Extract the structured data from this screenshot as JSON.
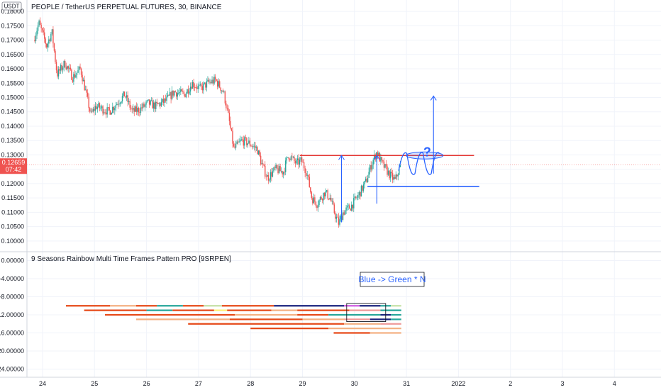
{
  "symbol_title": "PEOPLE / TetherUS PERPETUAL FUTURES, 30, BINANCE",
  "currency_badge": "USDT",
  "indicator_title": "9 Seasons Rainbow Multi Time Frames Pattern PRO [9SRPEN]",
  "current_price": {
    "value": "0.12659",
    "countdown": "07:42",
    "color": "#ef5350"
  },
  "colors": {
    "up": "#26a69a",
    "down": "#ef5350",
    "annotation": "#2962ff",
    "resistance": "#e53935"
  },
  "chart_data": [
    {
      "type": "candlestick",
      "title": "PEOPLE / TetherUS PERPETUAL FUTURES, 30, BINANCE",
      "ylim": [
        0.097,
        0.182
      ],
      "y_ticks": [
        "0.18000",
        "0.17500",
        "0.17000",
        "0.16500",
        "0.16000",
        "0.15500",
        "0.15000",
        "0.14500",
        "0.14000",
        "0.13500",
        "0.13000",
        "0.12500",
        "0.12000",
        "0.11500",
        "0.11000",
        "0.10500",
        "0.10000"
      ],
      "x_ticks": [
        "24",
        "25",
        "26",
        "27",
        "28",
        "29",
        "30",
        "31",
        "2022",
        "2",
        "3",
        "4"
      ],
      "price_path": [
        [
          23.85,
          0.17
        ],
        [
          23.95,
          0.176
        ],
        [
          24.1,
          0.168
        ],
        [
          24.2,
          0.173
        ],
        [
          24.3,
          0.158
        ],
        [
          24.45,
          0.162
        ],
        [
          24.6,
          0.157
        ],
        [
          24.75,
          0.16
        ],
        [
          24.85,
          0.152
        ],
        [
          24.95,
          0.144
        ],
        [
          25.05,
          0.147
        ],
        [
          25.3,
          0.145
        ],
        [
          25.45,
          0.148
        ],
        [
          25.6,
          0.151
        ],
        [
          25.75,
          0.145
        ],
        [
          25.9,
          0.146
        ],
        [
          26.05,
          0.148
        ],
        [
          26.2,
          0.147
        ],
        [
          26.4,
          0.149
        ],
        [
          26.55,
          0.152
        ],
        [
          26.75,
          0.151
        ],
        [
          26.9,
          0.155
        ],
        [
          27.05,
          0.153
        ],
        [
          27.2,
          0.155
        ],
        [
          27.35,
          0.156
        ],
        [
          27.5,
          0.152
        ],
        [
          27.6,
          0.143
        ],
        [
          27.7,
          0.132
        ],
        [
          27.85,
          0.135
        ],
        [
          28.0,
          0.134
        ],
        [
          28.15,
          0.132
        ],
        [
          28.25,
          0.126
        ],
        [
          28.35,
          0.122
        ],
        [
          28.5,
          0.125
        ],
        [
          28.65,
          0.124
        ],
        [
          28.75,
          0.13
        ],
        [
          28.9,
          0.127
        ],
        [
          29.0,
          0.128
        ],
        [
          29.1,
          0.124
        ],
        [
          29.2,
          0.115
        ],
        [
          29.3,
          0.113
        ],
        [
          29.45,
          0.117
        ],
        [
          29.55,
          0.115
        ],
        [
          29.65,
          0.109
        ],
        [
          29.72,
          0.106
        ],
        [
          29.8,
          0.11
        ],
        [
          29.95,
          0.112
        ],
        [
          30.1,
          0.116
        ],
        [
          30.25,
          0.121
        ],
        [
          30.35,
          0.127
        ],
        [
          30.45,
          0.131
        ],
        [
          30.55,
          0.127
        ],
        [
          30.7,
          0.123
        ],
        [
          30.8,
          0.121
        ],
        [
          30.9,
          0.126
        ]
      ],
      "resistance_level": 0.1298,
      "support_level": 0.119,
      "projection_peaks": [
        0.1305,
        0.1305,
        0.1305
      ],
      "target_level": 0.1505,
      "current_level": 0.12659
    },
    {
      "type": "pattern-bars",
      "title": "9 Seasons Rainbow Multi Time Frames Pattern PRO [9SRPEN]",
      "ylim": [
        -25.5,
        1.5
      ],
      "y_ticks": [
        "0.00000",
        "-4.00000",
        "-8.00000",
        "-12.00000",
        "-16.00000",
        "-20.00000",
        "-24.00000"
      ],
      "rows": [
        {
          "y": -10,
          "x_start": 24.45,
          "x_end": 30.9,
          "segments": [
            [
              "#e64a19",
              24.45,
              25.3
            ],
            [
              "#f4b183",
              25.3,
              25.8
            ],
            [
              "#e64a19",
              25.8,
              26.2
            ],
            [
              "#26a69a",
              26.2,
              26.7
            ],
            [
              "#e64a19",
              26.7,
              27.1
            ],
            [
              "#c5e1a5",
              27.1,
              27.45
            ],
            [
              "#e64a19",
              27.45,
              28.45
            ],
            [
              "#1a237e",
              28.45,
              29.8
            ],
            [
              "#d05ce3",
              29.8,
              30.1
            ],
            [
              "#1a237e",
              30.1,
              30.5
            ],
            [
              "#26a69a",
              30.5,
              30.7
            ],
            [
              "#c5e1a5",
              30.7,
              30.9
            ]
          ]
        },
        {
          "y": -11,
          "x_start": 24.8,
          "x_end": 30.9,
          "segments": [
            [
              "#e64a19",
              24.8,
              26.0
            ],
            [
              "#26a69a",
              26.0,
              26.5
            ],
            [
              "#e64a19",
              26.5,
              27.3
            ],
            [
              "#fff176",
              27.3,
              27.55
            ],
            [
              "#e64a19",
              27.55,
              28.4
            ],
            [
              "#f4b183",
              28.4,
              28.9
            ],
            [
              "#e64a19",
              28.9,
              29.9
            ],
            [
              "#ef9a9a",
              29.9,
              30.5
            ],
            [
              "#26a69a",
              30.5,
              30.9
            ]
          ]
        },
        {
          "y": -12,
          "x_start": 25.2,
          "x_end": 30.9,
          "segments": [
            [
              "#e64a19",
              25.2,
              27.7
            ],
            [
              "#f4b183",
              27.7,
              28.9
            ],
            [
              "#e64a19",
              28.9,
              29.5
            ],
            [
              "#26a69a",
              29.5,
              30.5
            ],
            [
              "#1a237e",
              30.5,
              30.7
            ],
            [
              "#26a69a",
              30.7,
              30.9
            ]
          ]
        },
        {
          "y": -13,
          "x_start": 25.8,
          "x_end": 30.9,
          "segments": [
            [
              "#f4b183",
              25.8,
              27.6
            ],
            [
              "#e64a19",
              27.6,
              29.0
            ],
            [
              "#f4b183",
              29.0,
              29.8
            ],
            [
              "#ef9a9a",
              29.8,
              30.3
            ],
            [
              "#1a237e",
              30.3,
              30.7
            ],
            [
              "#26a69a",
              30.7,
              30.9
            ]
          ]
        },
        {
          "y": -14,
          "x_start": 26.8,
          "x_end": 30.9,
          "segments": [
            [
              "#e64a19",
              26.8,
              29.8
            ],
            [
              "#f4b183",
              29.8,
              30.5
            ],
            [
              "#ef9a9a",
              30.5,
              30.9
            ]
          ]
        },
        {
          "y": -15,
          "x_start": 28.0,
          "x_end": 30.9,
          "segments": [
            [
              "#e64a19",
              28.0,
              29.5
            ],
            [
              "#f4b183",
              29.5,
              30.9
            ]
          ]
        },
        {
          "y": -16,
          "x_start": 29.6,
          "x_end": 30.9,
          "segments": [
            [
              "#e64a19",
              29.6,
              30.3
            ],
            [
              "#f4b183",
              30.3,
              30.9
            ]
          ]
        }
      ],
      "highlight_box": {
        "x_start": 29.85,
        "x_end": 30.6,
        "y_top": -9.5,
        "y_bottom": -13.5
      }
    }
  ],
  "annotation": {
    "text": "Blue -> Green * N"
  },
  "marker": {
    "text": "?"
  }
}
